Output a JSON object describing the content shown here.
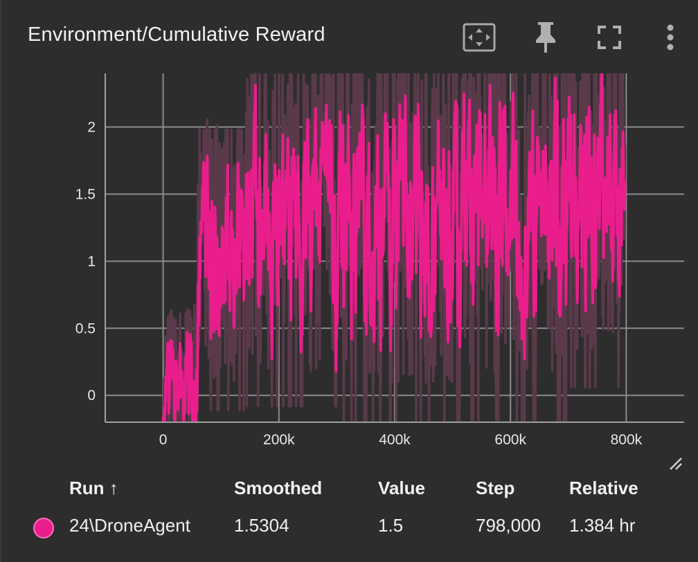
{
  "card": {
    "title": "Environment/Cumulative Reward",
    "toolbar": [
      {
        "name": "fit-domain-button",
        "icon": "fit-to-data-icon"
      },
      {
        "name": "pin-button",
        "icon": "pin-icon"
      },
      {
        "name": "fullscreen-button",
        "icon": "fullscreen-icon"
      },
      {
        "name": "more-menu-button",
        "icon": "more-vert-icon"
      }
    ]
  },
  "colors": {
    "background": "#2d2d2d",
    "grid": "#8c8c8c",
    "series": "#e91e8c",
    "raw": "#5a3a4a"
  },
  "chart_data": {
    "type": "line",
    "title": "",
    "xlabel": "",
    "ylabel": "",
    "xlim": [
      -100000,
      900000
    ],
    "ylim": [
      -0.2,
      2.4
    ],
    "x_ticks": [
      {
        "value": 0,
        "label": "0"
      },
      {
        "value": 200000,
        "label": "200k"
      },
      {
        "value": 400000,
        "label": "400k"
      },
      {
        "value": 600000,
        "label": "600k"
      },
      {
        "value": 800000,
        "label": "800k"
      }
    ],
    "y_ticks": [
      {
        "value": 0,
        "label": "0"
      },
      {
        "value": 0.5,
        "label": "0.5"
      },
      {
        "value": 1,
        "label": "1"
      },
      {
        "value": 1.5,
        "label": "1.5"
      },
      {
        "value": 2,
        "label": "2"
      }
    ],
    "grid": true,
    "series": [
      {
        "name": "24\\DroneAgent",
        "x_start": 0,
        "x_end": 798000,
        "segments": [
          {
            "from": 0,
            "to": 60000,
            "mean": 0.05,
            "amp": 0.35
          },
          {
            "from": 60000,
            "to": 140000,
            "mean": 1.1,
            "amp": 0.55
          },
          {
            "from": 140000,
            "to": 300000,
            "mean": 1.35,
            "amp": 0.65
          },
          {
            "from": 300000,
            "to": 500000,
            "mean": 1.35,
            "amp": 0.7
          },
          {
            "from": 500000,
            "to": 700000,
            "mean": 1.45,
            "amp": 0.75
          },
          {
            "from": 700000,
            "to": 798000,
            "mean": 1.6,
            "amp": 0.7
          }
        ]
      }
    ]
  },
  "table": {
    "headers": {
      "run": "Run ↑",
      "smoothed": "Smoothed",
      "value": "Value",
      "step": "Step",
      "relative": "Relative"
    },
    "rows": [
      {
        "run": "24\\DroneAgent",
        "smoothed": "1.5304",
        "value": "1.5",
        "step": "798,000",
        "relative": "1.384 hr"
      }
    ]
  }
}
